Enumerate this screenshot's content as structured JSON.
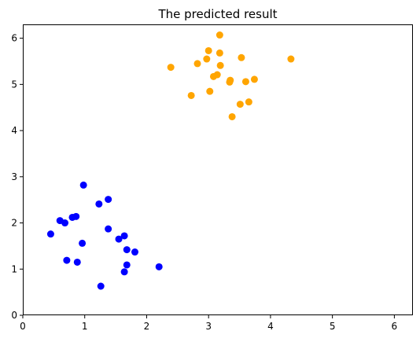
{
  "chart_data": {
    "type": "scatter",
    "title": "The predicted result",
    "xlabel": "",
    "ylabel": "",
    "xlim": [
      0,
      6.3
    ],
    "ylim": [
      0,
      6.3
    ],
    "xticks": [
      0,
      1,
      2,
      3,
      4,
      5,
      6
    ],
    "yticks": [
      0,
      1,
      2,
      3,
      4,
      5,
      6
    ],
    "xtick_labels": [
      "0",
      "1",
      "2",
      "3",
      "4",
      "5",
      "6"
    ],
    "ytick_labels": [
      "0",
      "1",
      "2",
      "3",
      "4",
      "5",
      "6"
    ],
    "grid": false,
    "legend": "none",
    "series": [
      {
        "color": "#0000ff",
        "points": [
          [
            0.45,
            1.76
          ],
          [
            0.6,
            2.05
          ],
          [
            0.68,
            2.0
          ],
          [
            0.8,
            2.12
          ],
          [
            0.86,
            2.14
          ],
          [
            0.71,
            1.19
          ],
          [
            0.88,
            1.15
          ],
          [
            0.96,
            1.56
          ],
          [
            0.98,
            2.82
          ],
          [
            1.23,
            2.41
          ],
          [
            1.38,
            2.51
          ],
          [
            1.38,
            1.87
          ],
          [
            1.55,
            1.65
          ],
          [
            1.64,
            1.72
          ],
          [
            1.68,
            1.42
          ],
          [
            1.81,
            1.37
          ],
          [
            1.68,
            1.09
          ],
          [
            1.64,
            0.94
          ],
          [
            1.26,
            0.63
          ],
          [
            2.2,
            1.05
          ]
        ]
      },
      {
        "color": "#ffa500",
        "points": [
          [
            2.39,
            5.37
          ],
          [
            2.72,
            4.76
          ],
          [
            2.82,
            5.45
          ],
          [
            2.97,
            5.55
          ],
          [
            3.0,
            5.73
          ],
          [
            3.02,
            4.85
          ],
          [
            3.08,
            5.17
          ],
          [
            3.14,
            5.21
          ],
          [
            3.18,
            6.07
          ],
          [
            3.18,
            5.68
          ],
          [
            3.19,
            5.41
          ],
          [
            3.34,
            5.05
          ],
          [
            3.35,
            5.09
          ],
          [
            3.38,
            4.3
          ],
          [
            3.51,
            4.57
          ],
          [
            3.53,
            5.58
          ],
          [
            3.6,
            5.06
          ],
          [
            3.65,
            4.62
          ],
          [
            3.74,
            5.11
          ],
          [
            4.33,
            5.55
          ]
        ]
      }
    ]
  }
}
